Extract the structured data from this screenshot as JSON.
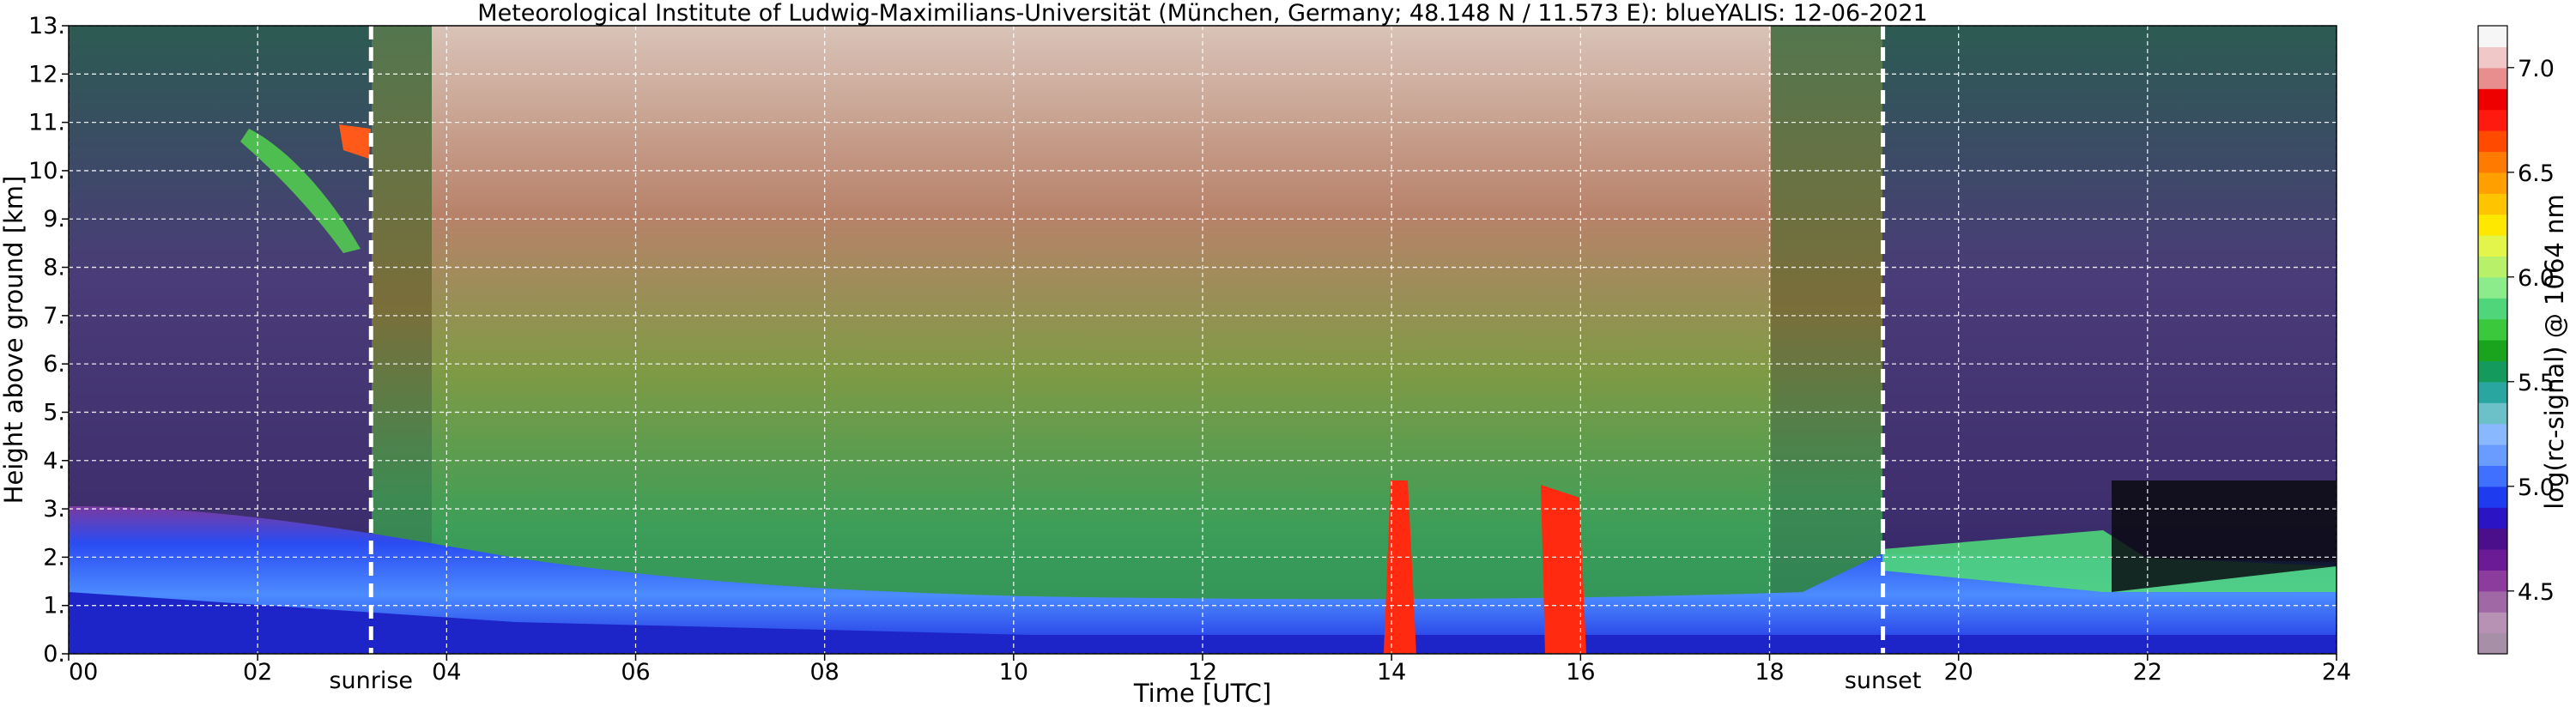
{
  "chart_data": {
    "type": "heatmap",
    "title": "Meteorological Institute of Ludwig-Maximilians-Universität (München, Germany; 48.148 N / 11.573 E):    blueYALIS: 12-06-2021",
    "xlabel": "Time [UTC]",
    "ylabel": "Height above ground [km]",
    "xlim": [
      0,
      24
    ],
    "ylim": [
      0,
      13
    ],
    "x_ticks": [
      "00",
      "02",
      "04",
      "06",
      "08",
      "10",
      "12",
      "14",
      "16",
      "18",
      "20",
      "22",
      "24"
    ],
    "y_ticks": [
      "0.",
      "1.",
      "2.",
      "3.",
      "4.",
      "5.",
      "6.",
      "7.",
      "8.",
      "9.",
      "10.",
      "11.",
      "12.",
      "13."
    ],
    "grid": true,
    "annotations": [
      {
        "x": 3.2,
        "label": "sunrise"
      },
      {
        "x": 19.2,
        "label": "sunset"
      }
    ],
    "colorbar": {
      "label": "log(rc-signal) @ 1064 nm",
      "range": [
        4.2,
        7.2
      ],
      "ticks": [
        "4.5",
        "5.0",
        "5.5",
        "6.0",
        "6.5",
        "7.0"
      ],
      "tick_values": [
        4.5,
        5.0,
        5.5,
        6.0,
        6.5,
        7.0
      ],
      "colors": [
        "#a78fa8",
        "#b792b5",
        "#a069a6",
        "#8c3c9c",
        "#6a1b95",
        "#4b0f8c",
        "#2a14c4",
        "#1f3bf0",
        "#3f70ff",
        "#6a9cff",
        "#8ab8ff",
        "#6cc0c8",
        "#2aa6a0",
        "#139a5c",
        "#1aa41e",
        "#3cc83c",
        "#4fd67a",
        "#8cec8c",
        "#b9f06a",
        "#e3f44a",
        "#ffe800",
        "#ffc400",
        "#ffa000",
        "#ff7a00",
        "#ff4a00",
        "#ff1a10",
        "#ee0000",
        "#e88e8e",
        "#f0c8c8",
        "#f6f6f6"
      ]
    }
  }
}
